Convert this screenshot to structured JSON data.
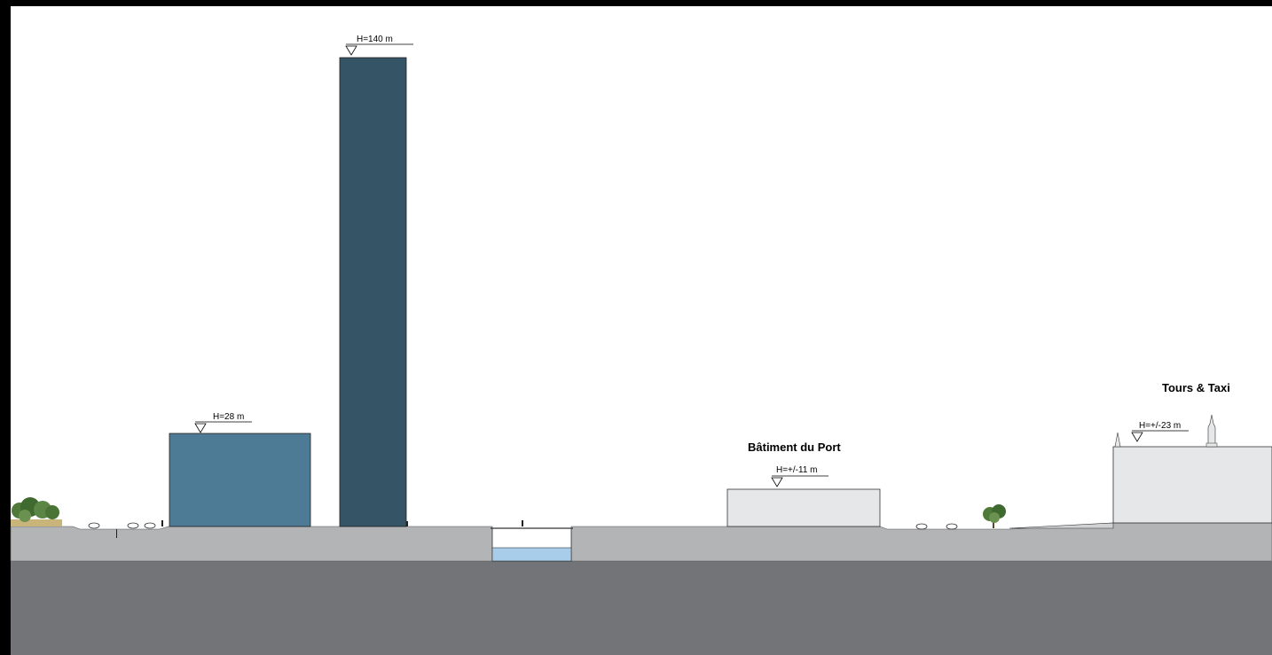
{
  "colors": {
    "frame": "#000000",
    "ground": "#b3b4b6",
    "subsoil": "#737477",
    "building_mid": "#4d7a94",
    "building_tower": "#355466",
    "building_light": "#e6e7e8",
    "water": "#a8cdea",
    "tree": "#4f7a3a"
  },
  "buildings": {
    "mid": {
      "height_label": "H=28 m"
    },
    "tower": {
      "height_label": "H=140 m"
    },
    "port": {
      "name": "Bâtiment du Port",
      "height_label": "H=+/-11 m"
    },
    "tours_taxi": {
      "name": "Tours & Taxi",
      "height_label": "H=+/-23 m"
    }
  }
}
